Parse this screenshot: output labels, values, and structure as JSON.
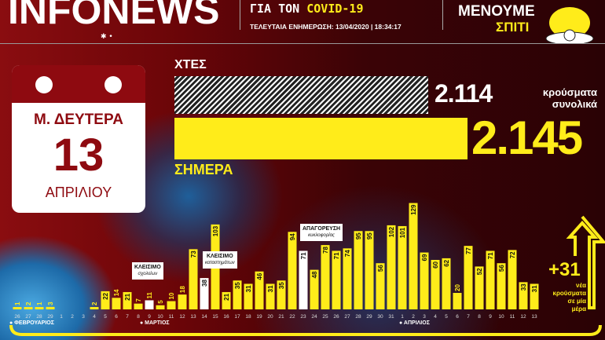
{
  "header": {
    "logo": "INFONEWS",
    "title_line2_prefix": "ΓΙΑ ΤΟΝ",
    "title_line2_highlight": "COVID-19",
    "updated": "ΤΕΛΕΥΤΑΙΑ ΕΝΗΜΕΡΩΣΗ: 13/04/2020 | 18:34:17",
    "stay_home_1": "ΜΕΝΟΥΜΕ",
    "stay_home_2": "ΣΠΙΤΙ"
  },
  "calendar": {
    "day": "Μ. ΔΕΥΤΕΡΑ",
    "date": "13",
    "month": "ΑΠΡΙΛΙΟΥ"
  },
  "totals": {
    "yesterday_label": "ΧΤΕΣ",
    "yesterday_value": "2.114",
    "today_label": "ΣΗΜΕΡΑ",
    "today_value": "2.145",
    "caption_1": "κρούσματα",
    "caption_2": "συνολικά"
  },
  "daily": {
    "plus": "+31",
    "caption": [
      "νέα",
      "κρούσματα",
      "σε μία",
      "μέρα"
    ]
  },
  "colors": {
    "accent": "#ffec1a",
    "highlight": "#ffffff",
    "calendar": "#8e0a10"
  },
  "chart_data": {
    "type": "bar",
    "categories": [
      "26",
      "27",
      "28",
      "29",
      "1",
      "2",
      "3",
      "4",
      "5",
      "6",
      "7",
      "8",
      "9",
      "10",
      "11",
      "12",
      "13",
      "14",
      "15",
      "16",
      "17",
      "18",
      "19",
      "20",
      "21",
      "22",
      "23",
      "24",
      "25",
      "26",
      "27",
      "28",
      "29",
      "30",
      "31",
      "1",
      "2",
      "3",
      "4",
      "5",
      "6",
      "7",
      "8",
      "9",
      "10",
      "11",
      "12",
      "13"
    ],
    "values": [
      1,
      2,
      1,
      3,
      0,
      0,
      0,
      2,
      22,
      14,
      21,
      7,
      11,
      5,
      10,
      18,
      73,
      38,
      103,
      21,
      35,
      31,
      46,
      31,
      35,
      94,
      71,
      48,
      78,
      71,
      74,
      95,
      95,
      56,
      102,
      101,
      129,
      69,
      60,
      62,
      20,
      77,
      52,
      71,
      56,
      72,
      33,
      31
    ],
    "highlighted": [
      12,
      17,
      26
    ],
    "months": [
      {
        "label": "ΦΕΒΡΟΥΑΡΙΟΣ",
        "start": 0
      },
      {
        "label": "ΜΑΡΤΙΟΣ",
        "start": 4
      },
      {
        "label": "ΑΠΡΙΛΙΟΣ",
        "start": 35
      }
    ],
    "annotations": [
      {
        "index": 12,
        "title": "ΚΛΕΙΣΙΜΟ",
        "sub": "σχολείων"
      },
      {
        "index": 17,
        "title": "ΚΛΕΙΣΙΜΟ",
        "sub": "καταστημάτων"
      },
      {
        "index": 26,
        "title": "ΑΠΑΓΟΡΕΥΣΗ",
        "sub": "κυκλοφορίας"
      }
    ]
  }
}
